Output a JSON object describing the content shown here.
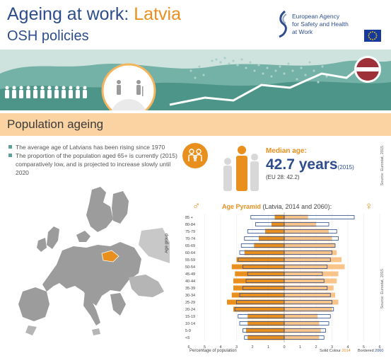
{
  "header": {
    "title_prefix": "Ageing at work: ",
    "title_country": "Latvia",
    "subtitle": "OSH policies",
    "agency_line1": "European Agency",
    "agency_line2": "for Safety and Health",
    "agency_line3": "at Work"
  },
  "colors": {
    "navy": "#2e4d8c",
    "orange": "#e88f1e",
    "light_orange": "#fbd3a2",
    "teal": "#5aa39a",
    "latvia_red": "#9e3039"
  },
  "section": {
    "title": "Population ageing"
  },
  "bullets": [
    "The average age of Latvians has been rising since 1970",
    "The proportion of the population aged 65+ is currently (2015) comparatively low, and is projected to increase slowly until 2020"
  ],
  "median": {
    "label": "Median age:",
    "value": "42.7 years",
    "year": "(2015)",
    "eu": "(EU 28: 42.2)",
    "source": "Source: Eurostat, 2015"
  },
  "pyramid": {
    "title": "Age Pyramid",
    "subtitle": " (Latvia, 2014 and 2060):",
    "axis_label": "Age group",
    "x_axis_label": "Percentage of population",
    "legend_solid_prefix": "Solid Colour",
    "legend_solid_year": "2014",
    "legend_bordered_prefix": "Bordered",
    "legend_bordered_year": "2060",
    "source": "Source: Eurostat, 2015",
    "male_symbol": "♂",
    "female_symbol": "♀"
  },
  "chart_data": {
    "type": "bar",
    "title": "Age Pyramid",
    "xlabel": "Percentage of population",
    "ylabel": "Age group",
    "xlim": [
      -6,
      6
    ],
    "x_ticks": [
      "6",
      "5",
      "4",
      "3",
      "2",
      "1",
      "0",
      "1",
      "2",
      "3",
      "4",
      "5",
      "6"
    ],
    "categories": [
      "85 +",
      "80-84",
      "75-79",
      "70-74",
      "65-69",
      "60-64",
      "55-59",
      "50-54",
      "45-49",
      "40-44",
      "35-39",
      "30-34",
      "25-29",
      "20-24",
      "15-19",
      "10-14",
      "5-9",
      "<5"
    ],
    "series": [
      {
        "name": "Male 2014",
        "values": [
          0.6,
          0.8,
          1.2,
          1.6,
          1.9,
          2.5,
          3.0,
          3.3,
          3.1,
          3.2,
          3.2,
          3.3,
          3.6,
          3.2,
          2.3,
          2.3,
          2.4,
          2.3
        ]
      },
      {
        "name": "Female 2014",
        "values": [
          1.5,
          2.0,
          2.8,
          3.0,
          3.2,
          3.3,
          3.6,
          3.8,
          3.4,
          3.3,
          3.1,
          3.2,
          3.4,
          3.0,
          2.1,
          2.2,
          2.3,
          2.2
        ]
      },
      {
        "name": "Male 2060",
        "values": [
          2.1,
          1.8,
          2.3,
          2.5,
          2.7,
          2.8,
          2.9,
          2.6,
          2.3,
          2.4,
          2.6,
          2.8,
          3.0,
          3.1,
          2.9,
          2.8,
          2.6,
          2.5
        ]
      },
      {
        "name": "Female 2060",
        "values": [
          4.4,
          2.8,
          3.3,
          3.4,
          3.2,
          3.0,
          2.9,
          2.7,
          2.4,
          2.5,
          2.7,
          2.9,
          3.0,
          3.1,
          2.9,
          2.8,
          2.6,
          2.5
        ]
      }
    ]
  }
}
